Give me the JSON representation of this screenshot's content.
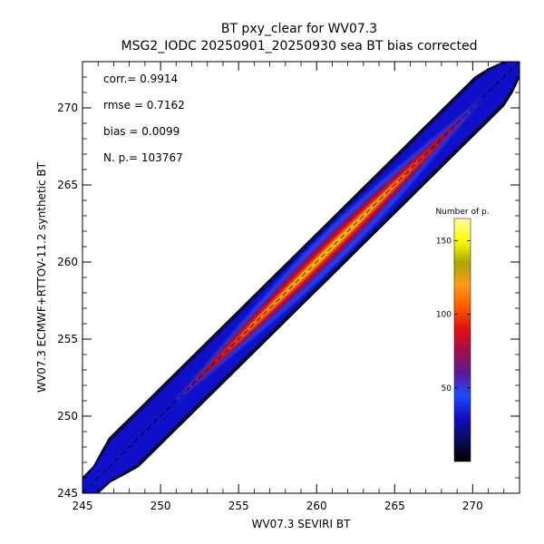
{
  "chart_data": {
    "type": "scatter-density",
    "title": "BT pxy_clear for WV07.3",
    "subtitle": "MSG2_IODC 20250901_20250930 sea BT bias corrected",
    "xlabel": "WV07.3 SEVIRI BT",
    "ylabel": "WV07.3 ECMWF+RTTOV-11.2 synthetic BT",
    "xlim": [
      245,
      273
    ],
    "ylim": [
      245,
      273
    ],
    "x_ticks": [
      245,
      250,
      255,
      260,
      265,
      270
    ],
    "y_ticks": [
      245,
      250,
      255,
      260,
      265,
      270
    ],
    "x_tick_labels": [
      "245",
      "250",
      "255",
      "260",
      "265",
      "270"
    ],
    "y_tick_labels": [
      "245",
      "250",
      "255",
      "260",
      "265",
      "270"
    ],
    "identity_line": {
      "x": [
        245,
        273
      ],
      "y": [
        245,
        273
      ],
      "style": "dashed"
    },
    "stats": [
      {
        "label": "corr.=",
        "value": "0.9914"
      },
      {
        "label": "rmse =",
        "value": "0.7162"
      },
      {
        "label": "bias =",
        "value": "0.0099"
      },
      {
        "label": "N. p.=",
        "value": "103767"
      }
    ],
    "density": {
      "centerline": {
        "x": [
          245,
          273
        ],
        "y": [
          245,
          273
        ]
      },
      "half_width_outer": 1.35,
      "peak_x": 262,
      "max_count": 165
    },
    "colorbar": {
      "title": "Number of p.",
      "range": [
        0,
        165
      ],
      "ticks": [
        50,
        100,
        150
      ],
      "tick_labels": [
        "50",
        "100",
        "150"
      ],
      "colormap": [
        "#000000",
        "#0a0a5a",
        "#1010c8",
        "#1e4cff",
        "#5a1a96",
        "#a0104a",
        "#e01010",
        "#ff5a00",
        "#ff9a1a",
        "#a8a800",
        "#ffff00",
        "#ffffaa"
      ]
    }
  }
}
